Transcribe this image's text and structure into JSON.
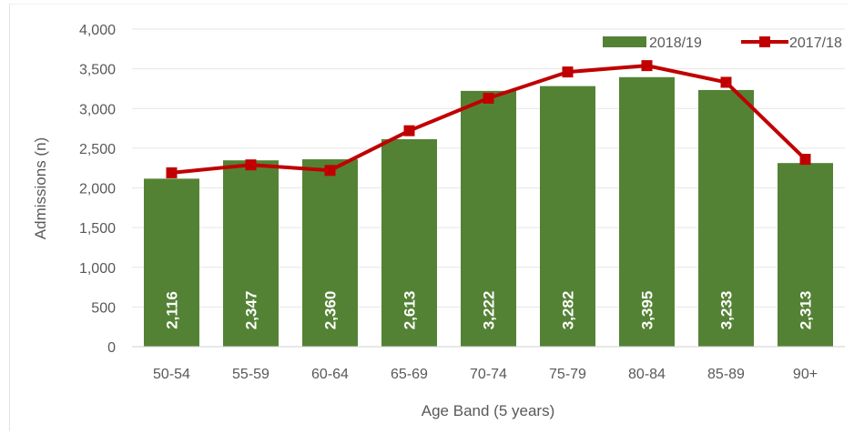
{
  "chart_data": {
    "type": "bar",
    "categories": [
      "50-54",
      "55-59",
      "60-64",
      "65-69",
      "70-74",
      "75-79",
      "80-84",
      "85-89",
      "90+"
    ],
    "series": [
      {
        "name": "2018/19",
        "type": "bar",
        "values": [
          2116,
          2347,
          2360,
          2613,
          3222,
          3282,
          3395,
          3233,
          2313
        ],
        "labels": [
          "2,116",
          "2,347",
          "2,360",
          "2,613",
          "3,222",
          "3,282",
          "3,395",
          "3,233",
          "2,313"
        ],
        "color": "#548235"
      },
      {
        "name": "2017/18",
        "type": "line",
        "values": [
          2190,
          2290,
          2220,
          2720,
          3130,
          3460,
          3540,
          3330,
          2360
        ],
        "color": "#c00000"
      }
    ],
    "xlabel": "Age Band (5 years)",
    "ylabel": "Admissions (n)",
    "ylim": [
      0,
      4000
    ],
    "yticks": [
      0,
      500,
      1000,
      1500,
      2000,
      2500,
      3000,
      3500,
      4000
    ],
    "ytick_labels": [
      "0",
      "500",
      "1,000",
      "1,500",
      "2,000",
      "2,500",
      "3,000",
      "3,500",
      "4,000"
    ],
    "grid": true,
    "legend": "top-right"
  }
}
